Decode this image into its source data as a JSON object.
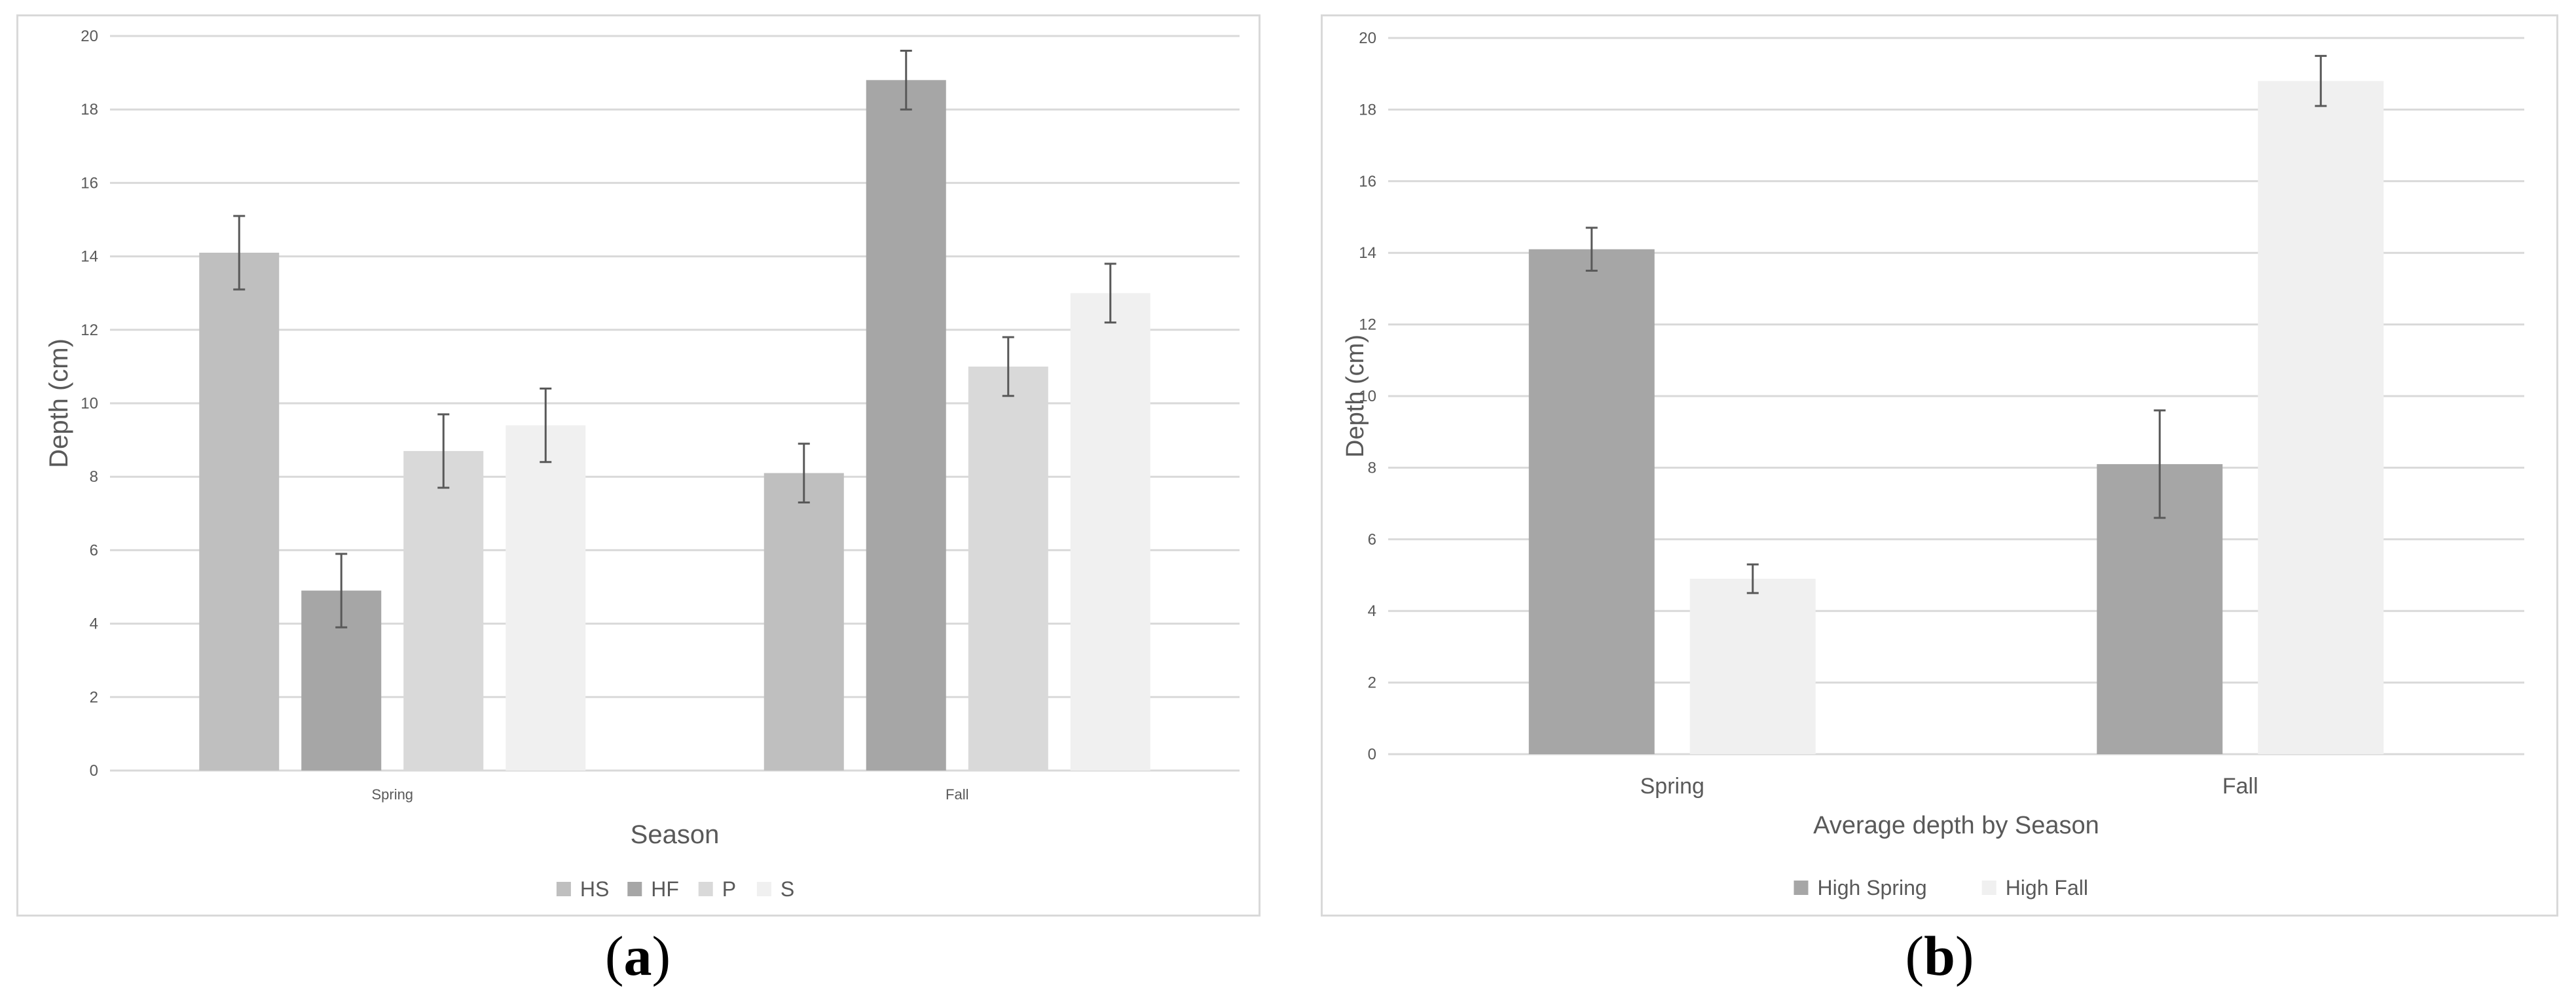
{
  "colors": {
    "grid": "#d9d9d9",
    "text": "#595959",
    "error_bar": "#595959"
  },
  "chart_data": [
    {
      "type": "bar",
      "title": "",
      "xlabel": "Season",
      "ylabel": "Depth (cm)",
      "ylim": [
        0,
        20
      ],
      "yticks": [
        0,
        2,
        4,
        6,
        8,
        10,
        12,
        14,
        16,
        18,
        20
      ],
      "categories": [
        "Spring",
        "Fall"
      ],
      "grid": true,
      "legend_position": "bottom",
      "series": [
        {
          "name": "HS",
          "color": "#bfbfbf",
          "values": [
            14.1,
            8.1
          ],
          "errors": [
            1.0,
            0.8
          ]
        },
        {
          "name": "HF",
          "color": "#a6a6a6",
          "values": [
            4.9,
            18.8
          ],
          "errors": [
            1.0,
            0.8
          ]
        },
        {
          "name": "P",
          "color": "#d9d9d9",
          "values": [
            8.7,
            11.0
          ],
          "errors": [
            1.0,
            0.8
          ]
        },
        {
          "name": "S",
          "color": "#f0f0f0",
          "values": [
            9.4,
            13.0
          ],
          "errors": [
            1.0,
            0.8
          ]
        }
      ],
      "caption_letter": "a"
    },
    {
      "type": "bar",
      "title": "",
      "xlabel": "Average depth by Season",
      "ylabel": "Depth (cm)",
      "ylim": [
        0,
        20
      ],
      "yticks": [
        0,
        2,
        4,
        6,
        8,
        10,
        12,
        14,
        16,
        18,
        20
      ],
      "categories": [
        "Spring",
        "Fall"
      ],
      "grid": true,
      "legend_position": "bottom",
      "series": [
        {
          "name": "High Spring",
          "color": "#a6a6a6",
          "values": [
            14.1,
            8.1
          ],
          "errors": [
            0.6,
            1.5
          ]
        },
        {
          "name": "High Fall",
          "color": "#f0f0f0",
          "values": [
            4.9,
            18.8
          ],
          "errors": [
            0.4,
            0.7
          ]
        }
      ],
      "caption_letter": "b"
    }
  ]
}
